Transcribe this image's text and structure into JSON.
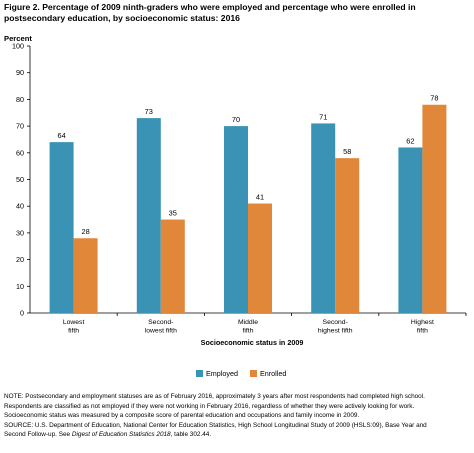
{
  "title": "Figure 2. Percentage of 2009 ninth-graders who were employed and percentage who were enrolled in postsecondary education, by socioeconomic status: 2016",
  "chart_data": {
    "type": "bar",
    "ylabel": "Percent",
    "xlabel": "Socioeconomic status in 2009",
    "ylim": [
      0,
      100
    ],
    "yticks": [
      0,
      10,
      20,
      30,
      40,
      50,
      60,
      70,
      80,
      90,
      100
    ],
    "categories": [
      [
        "Lowest",
        "fifth"
      ],
      [
        "Second-",
        "lowest fifth"
      ],
      [
        "Middle",
        "fifth"
      ],
      [
        "Second-",
        "highest fifth"
      ],
      [
        "Highest",
        "fifth"
      ]
    ],
    "series": [
      {
        "name": "Employed",
        "values": [
          64,
          73,
          70,
          71,
          62
        ],
        "labels": [
          "64",
          "73",
          "70",
          "71",
          "62"
        ],
        "color": "#3a93b4"
      },
      {
        "name": "Enrolled",
        "values": [
          28,
          35,
          41,
          58,
          78
        ],
        "labels": [
          "28",
          "35",
          "41",
          "58",
          "78"
        ],
        "color": "#e0873a"
      }
    ],
    "grid": false,
    "legend_position": "bottom-center"
  },
  "notes": {
    "note1": "NOTE: Postsecondary and employment statuses are as of February 2016, approximately 3 years after most respondents had completed high school.",
    "note2": "Respondents are classified as not employed if they were not working in February 2016, regardless of whether they were actively looking for work.",
    "note3": "Socioeconomic status was measured by a composite score of parental education and occupations and family income in 2009.",
    "source_prefix": "SOURCE: U.S. Department of Education, National Center for Education Statistics, High School Longitudinal Study of 2009 (HSLS:09), Base Year and",
    "source_line2_prefix": "Second Follow-up. See ",
    "source_italic": "Digest of Education Statistics 2018",
    "source_line2_suffix": ", table 302.44."
  }
}
